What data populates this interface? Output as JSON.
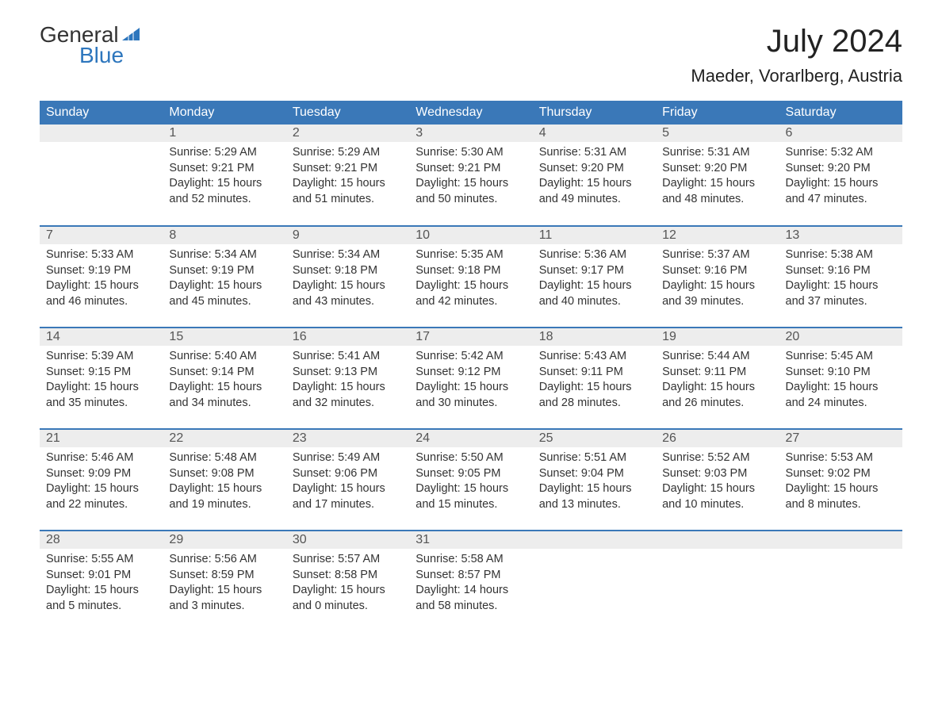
{
  "logo": {
    "word1": "General",
    "word2": "Blue"
  },
  "title": "July 2024",
  "location": "Maeder, Vorarlberg, Austria",
  "colors": {
    "header_bg": "#3a78b8",
    "header_text": "#ffffff",
    "daynum_bg": "#ededed",
    "row_border": "#3a78b8",
    "logo_accent": "#2d76bd",
    "body_text": "#333333",
    "background": "#ffffff"
  },
  "day_headers": [
    "Sunday",
    "Monday",
    "Tuesday",
    "Wednesday",
    "Thursday",
    "Friday",
    "Saturday"
  ],
  "weeks": [
    [
      {
        "blank": true
      },
      {
        "n": "1",
        "sunrise": "5:29 AM",
        "sunset": "9:21 PM",
        "dl_h": "15",
        "dl_m": "52"
      },
      {
        "n": "2",
        "sunrise": "5:29 AM",
        "sunset": "9:21 PM",
        "dl_h": "15",
        "dl_m": "51"
      },
      {
        "n": "3",
        "sunrise": "5:30 AM",
        "sunset": "9:21 PM",
        "dl_h": "15",
        "dl_m": "50"
      },
      {
        "n": "4",
        "sunrise": "5:31 AM",
        "sunset": "9:20 PM",
        "dl_h": "15",
        "dl_m": "49"
      },
      {
        "n": "5",
        "sunrise": "5:31 AM",
        "sunset": "9:20 PM",
        "dl_h": "15",
        "dl_m": "48"
      },
      {
        "n": "6",
        "sunrise": "5:32 AM",
        "sunset": "9:20 PM",
        "dl_h": "15",
        "dl_m": "47"
      }
    ],
    [
      {
        "n": "7",
        "sunrise": "5:33 AM",
        "sunset": "9:19 PM",
        "dl_h": "15",
        "dl_m": "46"
      },
      {
        "n": "8",
        "sunrise": "5:34 AM",
        "sunset": "9:19 PM",
        "dl_h": "15",
        "dl_m": "45"
      },
      {
        "n": "9",
        "sunrise": "5:34 AM",
        "sunset": "9:18 PM",
        "dl_h": "15",
        "dl_m": "43"
      },
      {
        "n": "10",
        "sunrise": "5:35 AM",
        "sunset": "9:18 PM",
        "dl_h": "15",
        "dl_m": "42"
      },
      {
        "n": "11",
        "sunrise": "5:36 AM",
        "sunset": "9:17 PM",
        "dl_h": "15",
        "dl_m": "40"
      },
      {
        "n": "12",
        "sunrise": "5:37 AM",
        "sunset": "9:16 PM",
        "dl_h": "15",
        "dl_m": "39"
      },
      {
        "n": "13",
        "sunrise": "5:38 AM",
        "sunset": "9:16 PM",
        "dl_h": "15",
        "dl_m": "37"
      }
    ],
    [
      {
        "n": "14",
        "sunrise": "5:39 AM",
        "sunset": "9:15 PM",
        "dl_h": "15",
        "dl_m": "35"
      },
      {
        "n": "15",
        "sunrise": "5:40 AM",
        "sunset": "9:14 PM",
        "dl_h": "15",
        "dl_m": "34"
      },
      {
        "n": "16",
        "sunrise": "5:41 AM",
        "sunset": "9:13 PM",
        "dl_h": "15",
        "dl_m": "32"
      },
      {
        "n": "17",
        "sunrise": "5:42 AM",
        "sunset": "9:12 PM",
        "dl_h": "15",
        "dl_m": "30"
      },
      {
        "n": "18",
        "sunrise": "5:43 AM",
        "sunset": "9:11 PM",
        "dl_h": "15",
        "dl_m": "28"
      },
      {
        "n": "19",
        "sunrise": "5:44 AM",
        "sunset": "9:11 PM",
        "dl_h": "15",
        "dl_m": "26"
      },
      {
        "n": "20",
        "sunrise": "5:45 AM",
        "sunset": "9:10 PM",
        "dl_h": "15",
        "dl_m": "24"
      }
    ],
    [
      {
        "n": "21",
        "sunrise": "5:46 AM",
        "sunset": "9:09 PM",
        "dl_h": "15",
        "dl_m": "22"
      },
      {
        "n": "22",
        "sunrise": "5:48 AM",
        "sunset": "9:08 PM",
        "dl_h": "15",
        "dl_m": "19"
      },
      {
        "n": "23",
        "sunrise": "5:49 AM",
        "sunset": "9:06 PM",
        "dl_h": "15",
        "dl_m": "17"
      },
      {
        "n": "24",
        "sunrise": "5:50 AM",
        "sunset": "9:05 PM",
        "dl_h": "15",
        "dl_m": "15"
      },
      {
        "n": "25",
        "sunrise": "5:51 AM",
        "sunset": "9:04 PM",
        "dl_h": "15",
        "dl_m": "13"
      },
      {
        "n": "26",
        "sunrise": "5:52 AM",
        "sunset": "9:03 PM",
        "dl_h": "15",
        "dl_m": "10"
      },
      {
        "n": "27",
        "sunrise": "5:53 AM",
        "sunset": "9:02 PM",
        "dl_h": "15",
        "dl_m": "8"
      }
    ],
    [
      {
        "n": "28",
        "sunrise": "5:55 AM",
        "sunset": "9:01 PM",
        "dl_h": "15",
        "dl_m": "5"
      },
      {
        "n": "29",
        "sunrise": "5:56 AM",
        "sunset": "8:59 PM",
        "dl_h": "15",
        "dl_m": "3"
      },
      {
        "n": "30",
        "sunrise": "5:57 AM",
        "sunset": "8:58 PM",
        "dl_h": "15",
        "dl_m": "0"
      },
      {
        "n": "31",
        "sunrise": "5:58 AM",
        "sunset": "8:57 PM",
        "dl_h": "14",
        "dl_m": "58"
      },
      {
        "blank": true
      },
      {
        "blank": true
      },
      {
        "blank": true
      }
    ]
  ],
  "labels": {
    "sunrise": "Sunrise:",
    "sunset": "Sunset:",
    "daylight": "Daylight:",
    "hours": "hours",
    "and": "and",
    "minutes": "minutes."
  }
}
